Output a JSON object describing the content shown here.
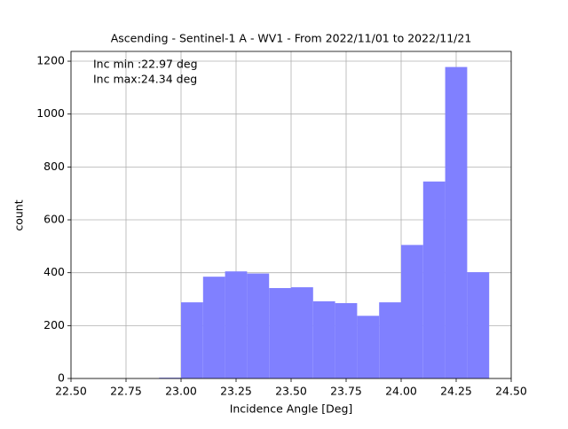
{
  "chart_data": {
    "type": "histogram",
    "title": "Ascending - Sentinel-1 A - WV1 - From 2022/11/01 to 2022/11/21",
    "x_label": "Incidence Angle [Deg]",
    "y_label": "count",
    "annotations": [
      "Inc min :22.97 deg",
      "Inc max:24.34 deg"
    ],
    "bins": [
      22.9,
      23.0,
      23.1,
      23.2,
      23.3,
      23.4,
      23.5,
      23.6,
      23.7,
      23.8,
      23.9,
      24.0,
      24.1,
      24.2,
      24.3,
      24.4
    ],
    "values": [
      3,
      288,
      385,
      405,
      397,
      342,
      345,
      292,
      285,
      237,
      288,
      505,
      745,
      1178,
      402
    ],
    "color": "#8080ff",
    "xlim": [
      22.5,
      24.5
    ],
    "xticks": [
      {
        "value": 22.5,
        "label": "22.50"
      },
      {
        "value": 22.75,
        "label": "22.75"
      },
      {
        "value": 23.0,
        "label": "23.00"
      },
      {
        "value": 23.25,
        "label": "23.25"
      },
      {
        "value": 23.5,
        "label": "23.50"
      },
      {
        "value": 23.75,
        "label": "23.75"
      },
      {
        "value": 24.0,
        "label": "24.00"
      },
      {
        "value": 24.25,
        "label": "24.25"
      },
      {
        "value": 24.5,
        "label": "24.50"
      }
    ],
    "ylim": [
      0,
      1237
    ],
    "yticks": [
      0,
      200,
      400,
      600,
      800,
      1000,
      1200
    ],
    "grid": true
  }
}
